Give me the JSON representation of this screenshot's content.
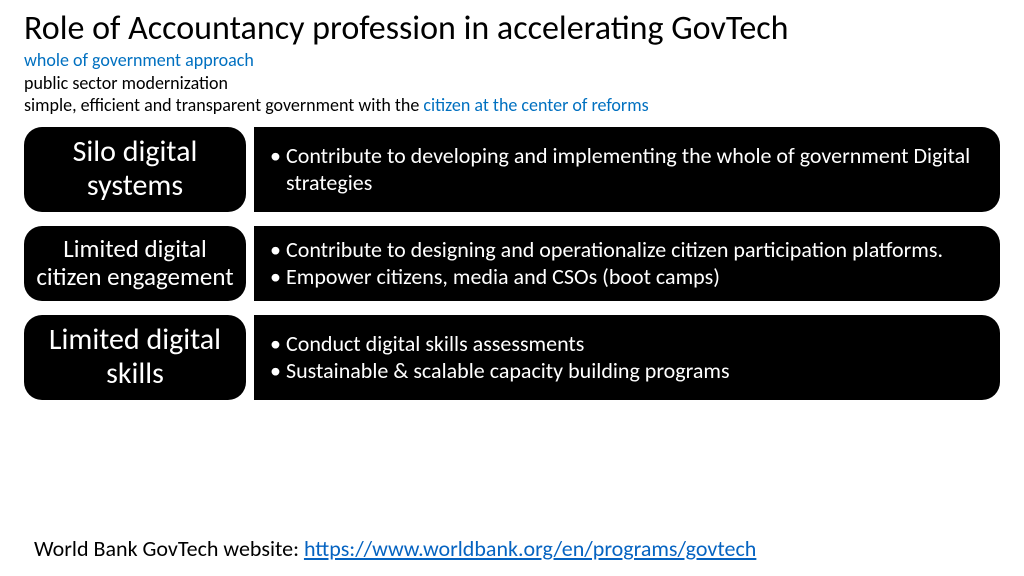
{
  "title": "Role of Accountancy profession in accelerating GovTech",
  "subtitle": {
    "line1_blue": "whole of government approach",
    "line2": "public sector modernization",
    "line3_a": "simple, efficient and transparent government with the ",
    "line3_b_blue": "citizen at the center of reforms"
  },
  "rows": [
    {
      "label": "Silo digital systems",
      "label_size": "lbl-large",
      "bullets": [
        "Contribute to developing and implementing the whole of government Digital strategies"
      ]
    },
    {
      "label": "Limited digital citizen engagement",
      "label_size": "lbl-med",
      "bullets": [
        "Contribute to designing and operationalize citizen participation platforms.",
        " Empower citizens, media and CSOs (boot camps)"
      ]
    },
    {
      "label": "Limited digital skills",
      "label_size": "lbl-large",
      "bullets": [
        "Conduct digital skills assessments",
        "Sustainable & scalable capacity building programs"
      ]
    }
  ],
  "footer": {
    "prefix": "World Bank GovTech website: ",
    "link_text": "https://www.worldbank.org/en/programs/govtech",
    "link_href": "https://www.worldbank.org/en/programs/govtech"
  },
  "colors": {
    "blue_text": "#0070c0",
    "link": "#0563c1",
    "box_bg": "#000000",
    "box_fg": "#ffffff",
    "page_bg": "#ffffff"
  }
}
